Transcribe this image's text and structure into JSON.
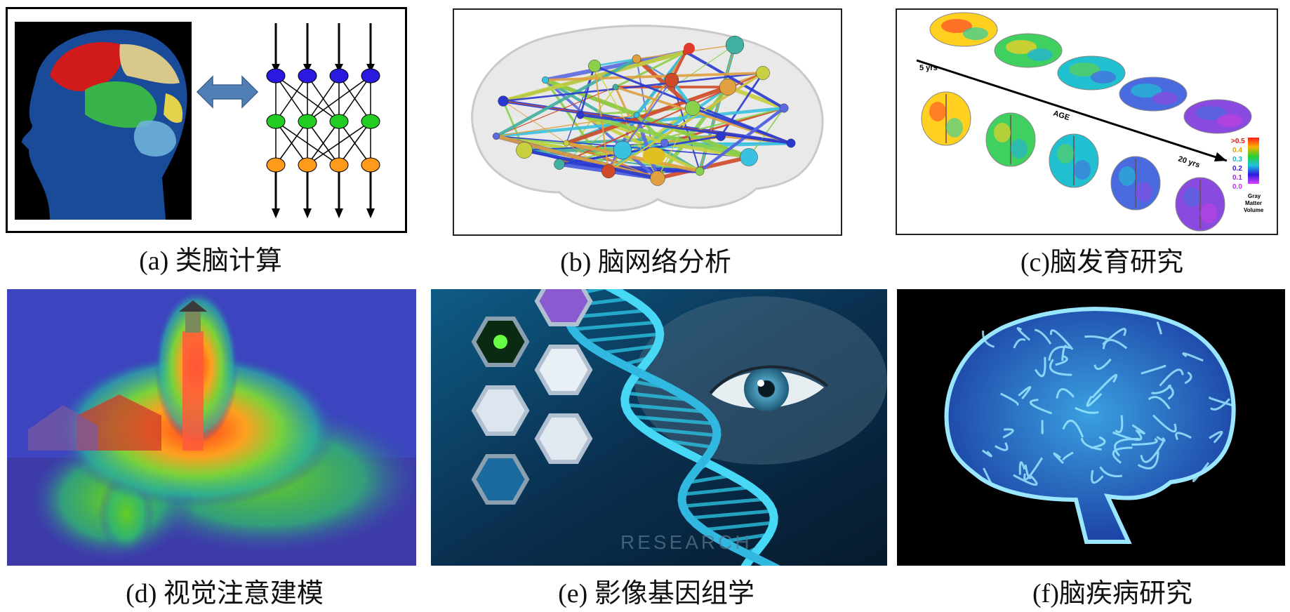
{
  "panels": [
    {
      "id": "a",
      "caption": "(a) 类脑计算"
    },
    {
      "id": "b",
      "caption": "(b) 脑网络分析"
    },
    {
      "id": "c",
      "caption": "(c)脑发育研究",
      "labels": {
        "start_age": "5 yrs",
        "axis": "AGE",
        "end_age": "20 yrs",
        "scale": [
          ">0.5",
          "0.4",
          "0.3",
          "0.2",
          "0.1",
          "0.0"
        ],
        "legend_title": [
          "Gray",
          "Matter",
          "Volume"
        ]
      }
    },
    {
      "id": "d",
      "caption": "(d) 视觉注意建模"
    },
    {
      "id": "e",
      "caption": "(e) 影像基因组学",
      "watermark": "RESEARCH"
    },
    {
      "id": "f",
      "caption": "(f)脑疾病研究"
    }
  ],
  "colors": {
    "neuron_blue": "#2a1ae0",
    "neuron_green": "#22cc22",
    "neuron_orange": "#ff9a1a",
    "arrow_blue": "#4f7fb5"
  },
  "icons": [
    "double-arrow-icon",
    "brain-icon",
    "dna-icon",
    "eye-icon",
    "lighthouse-icon"
  ]
}
